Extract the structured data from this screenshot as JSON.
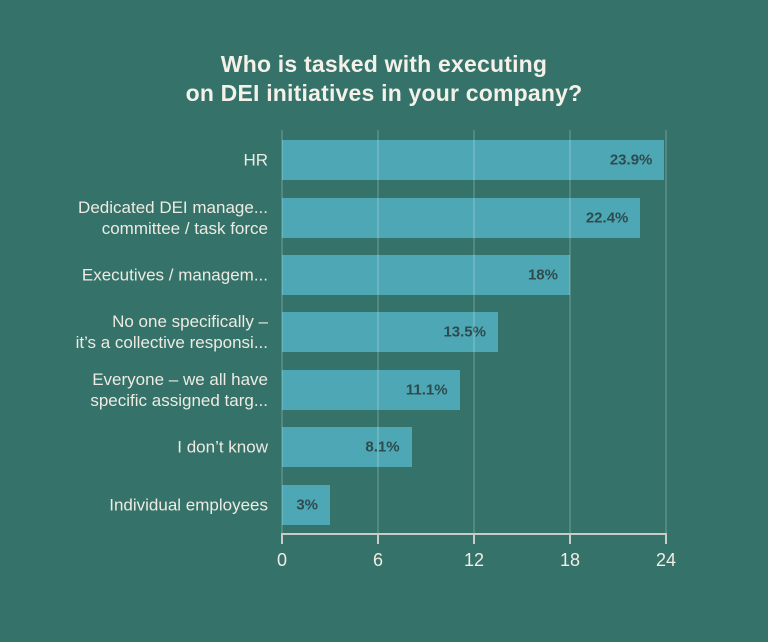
{
  "title": {
    "line1": "Who is tasked with executing",
    "line2": "on DEI initiatives in your company?"
  },
  "chart_data": {
    "type": "bar",
    "orientation": "horizontal",
    "title": "Who is tasked with executing on DEI initiatives in your company?",
    "categories": [
      "HR",
      "Dedicated DEI manage... committee / task force",
      "Executives / managem...",
      "No one specifically – it’s a collective responsi...",
      "Everyone – we all have specific assigned targ...",
      "I don’t know",
      "Individual employees"
    ],
    "category_label_lines": [
      [
        "HR"
      ],
      [
        "Dedicated DEI manage...",
        "committee / task force"
      ],
      [
        "Executives / managem..."
      ],
      [
        "No one specifically –",
        "it’s a collective responsi..."
      ],
      [
        "Everyone – we all have",
        "specific assigned targ..."
      ],
      [
        "I don’t know"
      ],
      [
        "Individual employees"
      ]
    ],
    "values": [
      23.9,
      22.4,
      18,
      13.5,
      11.1,
      8.1,
      3
    ],
    "value_labels": [
      "23.9%",
      "22.4%",
      "18%",
      "13.5%",
      "11.1%",
      "8.1%",
      "3%"
    ],
    "xlabel": "",
    "ylabel": "",
    "xlim": [
      0,
      24
    ],
    "x_ticks": [
      0,
      6,
      12,
      18,
      24
    ],
    "x_tick_labels": [
      "0",
      "6",
      "12",
      "18",
      "24"
    ],
    "grid": true,
    "legend": false,
    "colors": {
      "background": "#34726A",
      "bar": "#4DA7B4",
      "bar_value_label": "#2E4C4E",
      "category_label": "#EDEBE2",
      "title": "#F4F1E8",
      "axis_line": "#C9CCC5",
      "tick_label": "#F0EEE5",
      "gridline": "rgba(255,255,255,0.16)"
    }
  }
}
